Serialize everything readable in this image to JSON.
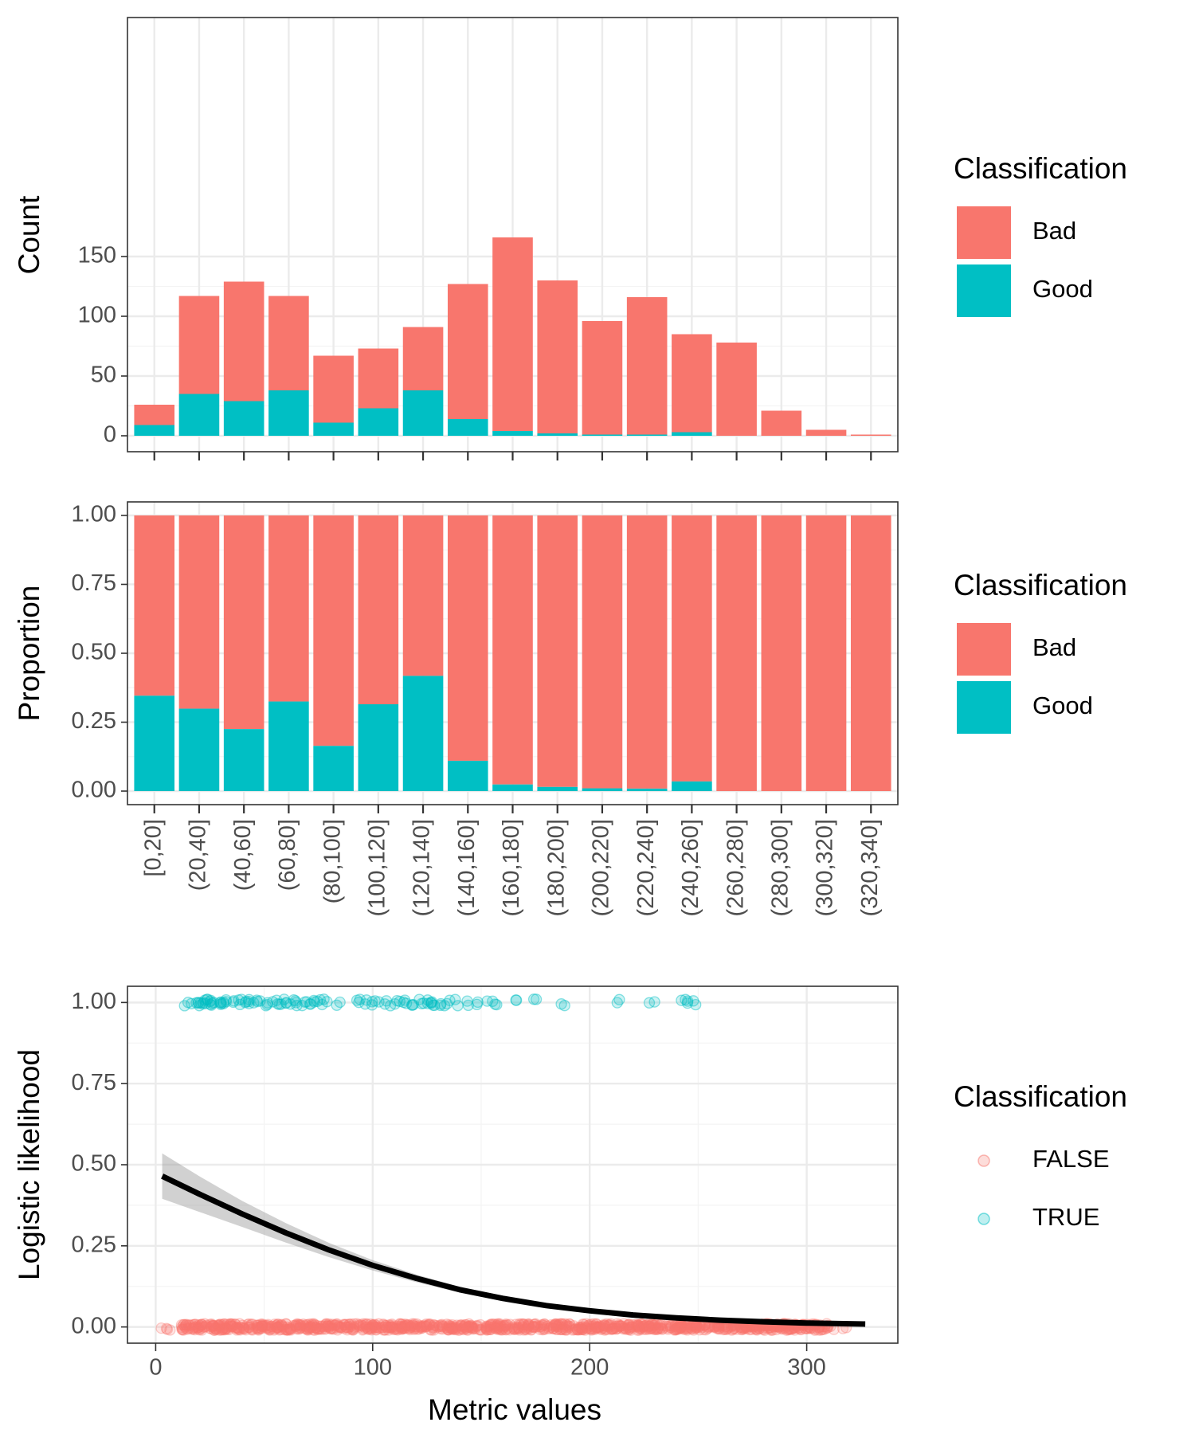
{
  "colors": {
    "bad": "#F8766D",
    "good": "#00BFC4",
    "fit": "#000000",
    "ribbon": "#999999",
    "grid_major": "#EBEBEB",
    "grid_minor": "#F4F4F4",
    "panel_border": "#333333",
    "tick_text": "#4D4D4D"
  },
  "chart_data": [
    {
      "type": "bar",
      "stacked": true,
      "categories": [
        "[0,20]",
        "(20,40]",
        "(40,60]",
        "(60,80]",
        "(80,100]",
        "(100,120]",
        "(120,140]",
        "(140,160]",
        "(160,180]",
        "(180,200]",
        "(200,220]",
        "(220,240]",
        "(240,260]",
        "(260,280]",
        "(280,300]",
        "(300,320]",
        "(320,340]"
      ],
      "series": [
        {
          "name": "Bad",
          "values": [
            17,
            82,
            100,
            79,
            56,
            50,
            53,
            113,
            162,
            128,
            95,
            115,
            82,
            78,
            21,
            5,
            1
          ]
        },
        {
          "name": "Good",
          "values": [
            9,
            35,
            29,
            38,
            11,
            23,
            38,
            14,
            4,
            2,
            1,
            1,
            3,
            0,
            0,
            0,
            0
          ]
        }
      ],
      "ylabel": "Count",
      "yticks": [
        "0",
        "50",
        "100",
        "150"
      ],
      "ylim": [
        0,
        167
      ],
      "x_tick_labels_shown": false,
      "legend": {
        "title": "Classification",
        "position": "right",
        "entries": [
          "Bad",
          "Good"
        ]
      }
    },
    {
      "type": "bar",
      "stacked": true,
      "categories": [
        "[0,20]",
        "(20,40]",
        "(40,60]",
        "(60,80]",
        "(80,100]",
        "(100,120]",
        "(120,140]",
        "(140,160]",
        "(160,180]",
        "(180,200]",
        "(200,220]",
        "(220,240]",
        "(240,260]",
        "(260,280]",
        "(280,300]",
        "(300,320]",
        "(320,340]"
      ],
      "series": [
        {
          "name": "Good",
          "values": [
            0.346,
            0.299,
            0.225,
            0.325,
            0.164,
            0.315,
            0.418,
            0.11,
            0.024,
            0.015,
            0.01,
            0.009,
            0.035,
            0,
            0,
            0,
            0
          ]
        },
        {
          "name": "Bad",
          "values": [
            0.654,
            0.701,
            0.775,
            0.675,
            0.836,
            0.685,
            0.582,
            0.89,
            0.976,
            0.985,
            0.99,
            0.991,
            0.965,
            1,
            1,
            1,
            1
          ]
        }
      ],
      "ylabel": "Proportion",
      "yticks": [
        "0.00",
        "0.25",
        "0.50",
        "0.75",
        "1.00"
      ],
      "ylim": [
        0,
        1
      ],
      "legend": {
        "title": "Classification",
        "position": "right",
        "entries": [
          "Bad",
          "Good"
        ]
      }
    },
    {
      "type": "scatter",
      "xlabel": "Metric values",
      "ylabel": "Logistic likelihood",
      "xticks": [
        "0",
        "100",
        "200",
        "300"
      ],
      "yticks": [
        "0.00",
        "0.25",
        "0.50",
        "0.75",
        "1.00"
      ],
      "xlim": [
        -13,
        342
      ],
      "ylim": [
        -0.05,
        1.05
      ],
      "points_true_x": [
        14,
        17,
        19,
        21,
        22,
        23,
        24,
        25,
        26,
        27,
        28,
        30,
        31,
        33,
        35,
        38,
        40,
        42,
        44,
        46,
        48,
        50,
        52,
        55,
        58,
        60,
        62,
        64,
        66,
        68,
        70,
        72,
        74,
        76,
        78,
        84,
        93,
        95,
        98,
        101,
        104,
        108,
        111,
        114,
        116,
        118,
        120,
        122,
        124,
        126,
        128,
        130,
        133,
        136,
        140,
        145,
        150,
        154,
        158,
        168,
        176,
        188,
        214,
        229,
        243,
        247,
        249
      ],
      "points_false_x_range": [
        2,
        328
      ],
      "fit_curve": {
        "x": [
          3,
          20,
          40,
          60,
          80,
          100,
          120,
          140,
          160,
          180,
          200,
          220,
          240,
          260,
          280,
          300,
          327
        ],
        "y": [
          0.465,
          0.41,
          0.348,
          0.29,
          0.237,
          0.19,
          0.15,
          0.115,
          0.088,
          0.066,
          0.05,
          0.037,
          0.028,
          0.021,
          0.016,
          0.012,
          0.009
        ]
      },
      "ribbon_halfwidth": {
        "x": [
          3,
          20,
          40,
          60,
          80,
          100,
          120,
          140,
          160,
          180,
          200,
          220,
          240,
          260,
          280,
          300,
          327
        ],
        "h": [
          0.07,
          0.055,
          0.04,
          0.03,
          0.022,
          0.016,
          0.012,
          0.009,
          0.008,
          0.007,
          0.006,
          0.005,
          0.004,
          0.004,
          0.003,
          0.003,
          0.003
        ]
      },
      "legend": {
        "title": "Classification",
        "position": "right",
        "entries": [
          "FALSE",
          "TRUE"
        ]
      }
    }
  ]
}
